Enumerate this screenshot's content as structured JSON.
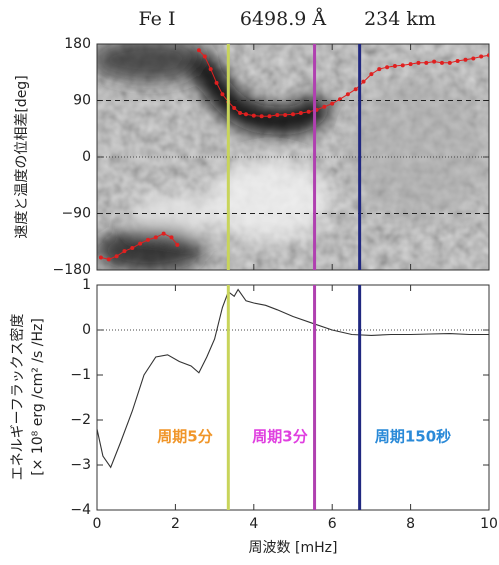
{
  "chart_data": [
    {
      "type": "line",
      "markers": true,
      "title_parts": [
        "Fe I",
        "6498.9 Å",
        "234 km"
      ],
      "y_label": "速度と温度の位相差[deg]",
      "color": "#e02020",
      "x": [
        0.1,
        0.3,
        0.5,
        0.7,
        0.9,
        1.1,
        1.3,
        1.5,
        1.7,
        1.9,
        2.05,
        2.3,
        2.6,
        2.75,
        2.9,
        3.05,
        3.2,
        3.35,
        3.5,
        3.65,
        3.8,
        4.0,
        4.2,
        4.4,
        4.6,
        4.8,
        5.0,
        5.2,
        5.4,
        5.6,
        5.8,
        6.0,
        6.2,
        6.4,
        6.6,
        6.8,
        7.0,
        7.2,
        7.4,
        7.6,
        7.8,
        8.0,
        8.2,
        8.4,
        8.6,
        8.8,
        9.0,
        9.2,
        9.4,
        9.6,
        9.8,
        10.0
      ],
      "values": [
        -160,
        -163,
        -158,
        -150,
        -145,
        -138,
        -132,
        -128,
        -122,
        -128,
        -140,
        null,
        170,
        160,
        140,
        118,
        100,
        88,
        78,
        70,
        68,
        66,
        65,
        65,
        67,
        67,
        68,
        70,
        72,
        75,
        80,
        85,
        92,
        100,
        108,
        120,
        132,
        140,
        143,
        145,
        146,
        148,
        150,
        150,
        152,
        150,
        150,
        153,
        155,
        157,
        160,
        162
      ],
      "ylim": [
        -180,
        180
      ],
      "yticks": [
        180,
        90,
        0,
        {
          "value": -90,
          "label": "−90"
        },
        {
          "value": -180,
          "label": "−180"
        }
      ],
      "dashed_lines": [
        90,
        -90
      ],
      "dotted_lines": [
        0
      ]
    },
    {
      "type": "line",
      "x_label": "周波数 [mHz]",
      "y_label": [
        "エネルギーフラックス密度",
        "[× 10⁸ erg /cm² /s /Hz]"
      ],
      "color": "#333333",
      "x": [
        0,
        0.15,
        0.35,
        0.6,
        0.9,
        1.2,
        1.5,
        1.8,
        2.1,
        2.4,
        2.6,
        2.8,
        3.0,
        3.2,
        3.35,
        3.5,
        3.6,
        3.8,
        4.0,
        4.3,
        4.6,
        5.0,
        5.5,
        6.0,
        6.5,
        7.0,
        7.5,
        8.0,
        8.5,
        9.0,
        9.5,
        10.0
      ],
      "values": [
        -2.2,
        -2.8,
        -3.05,
        -2.5,
        -1.8,
        -1.0,
        -0.6,
        -0.55,
        -0.7,
        -0.8,
        -0.95,
        -0.6,
        -0.2,
        0.5,
        0.85,
        0.75,
        0.9,
        0.65,
        0.6,
        0.55,
        0.45,
        0.3,
        0.15,
        0.0,
        -0.1,
        -0.12,
        -0.1,
        -0.1,
        -0.09,
        -0.08,
        -0.1,
        -0.1
      ],
      "xlim": [
        0,
        10
      ],
      "xticks": [
        0,
        2,
        4,
        6,
        8,
        10
      ],
      "ylim": [
        -4,
        1
      ],
      "yticks": [
        1,
        0,
        {
          "value": -1,
          "label": "−1"
        },
        {
          "value": -2,
          "label": "−2"
        },
        {
          "value": -3,
          "label": "−3"
        },
        {
          "value": -4,
          "label": "−4"
        }
      ],
      "dotted_lines": [
        0
      ],
      "vlines": [
        {
          "x": 3.35,
          "color": "#c8d45a",
          "label": "周期5分",
          "label_color": "#f0962a"
        },
        {
          "x": 5.55,
          "color": "#b040b0",
          "label": "周期3分",
          "label_color": "#e040e0"
        },
        {
          "x": 6.7,
          "color": "#202880",
          "label": "周期150秒",
          "label_color": "#2a8ad8"
        }
      ]
    }
  ]
}
